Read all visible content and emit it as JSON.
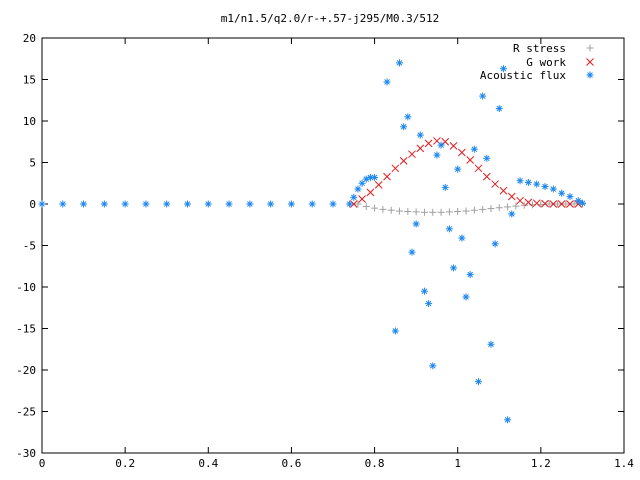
{
  "chart_data": {
    "type": "scatter",
    "title": "m1/n1.5/q2.0/r-+.57-j295/M0.3/512",
    "xlabel": "",
    "ylabel": "",
    "xlim": [
      0,
      1.4
    ],
    "ylim": [
      -30,
      20
    ],
    "x_ticks": [
      0,
      0.2,
      0.4,
      0.6,
      0.8,
      1,
      1.2,
      1.4
    ],
    "y_ticks": [
      -30,
      -25,
      -20,
      -15,
      -10,
      -5,
      0,
      5,
      10,
      15,
      20
    ],
    "x_tick_labels": [
      "0",
      "0.2",
      "0.4",
      "0.6",
      "0.8",
      "1",
      "1.2",
      "1.4"
    ],
    "y_tick_labels": [
      "-30",
      "-25",
      "-20",
      "-15",
      "-10",
      "-5",
      "0",
      "5",
      "10",
      "15",
      "20"
    ],
    "grid": false,
    "legend_position": "top-right",
    "series": [
      {
        "name": "R stress",
        "marker": "+",
        "color": "#a0a0a0",
        "x": [
          0.76,
          0.78,
          0.8,
          0.82,
          0.84,
          0.86,
          0.88,
          0.9,
          0.92,
          0.94,
          0.96,
          0.98,
          1.0,
          1.02,
          1.04,
          1.06,
          1.08,
          1.1,
          1.12,
          1.14,
          1.16,
          1.18,
          1.2,
          1.22,
          1.24,
          1.26,
          1.28,
          1.3
        ],
        "y": [
          0,
          -0.3,
          -0.5,
          -0.65,
          -0.75,
          -0.85,
          -0.9,
          -0.95,
          -1.0,
          -1.0,
          -1.0,
          -0.95,
          -0.9,
          -0.85,
          -0.75,
          -0.65,
          -0.55,
          -0.45,
          -0.35,
          -0.25,
          -0.15,
          -0.1,
          -0.05,
          0,
          0,
          0,
          0,
          0
        ]
      },
      {
        "name": "G work",
        "marker": "x",
        "color": "#e41a1c",
        "x": [
          0.75,
          0.77,
          0.79,
          0.81,
          0.83,
          0.85,
          0.87,
          0.89,
          0.91,
          0.93,
          0.95,
          0.97,
          0.99,
          1.01,
          1.03,
          1.05,
          1.07,
          1.09,
          1.11,
          1.13,
          1.15,
          1.17,
          1.19,
          1.21,
          1.23,
          1.25,
          1.27,
          1.29
        ],
        "y": [
          0,
          0.6,
          1.4,
          2.3,
          3.3,
          4.3,
          5.2,
          6.0,
          6.7,
          7.3,
          7.6,
          7.5,
          7.0,
          6.2,
          5.3,
          4.3,
          3.3,
          2.4,
          1.6,
          0.9,
          0.4,
          0.2,
          0.1,
          0.05,
          0,
          0,
          0,
          0
        ]
      },
      {
        "name": "Acoustic flux",
        "marker": "*",
        "color": "#1c86ee",
        "x": [
          0.0,
          0.05,
          0.1,
          0.15,
          0.2,
          0.25,
          0.3,
          0.35,
          0.4,
          0.45,
          0.5,
          0.55,
          0.6,
          0.65,
          0.7,
          0.74,
          0.75,
          0.76,
          0.77,
          0.78,
          0.79,
          0.8,
          1.15,
          1.17,
          1.19,
          1.21,
          1.23,
          1.25,
          1.27,
          1.29,
          1.3,
          0.83,
          0.86,
          0.87,
          0.89,
          0.91,
          0.93,
          0.95,
          0.96,
          0.98,
          1.0,
          1.02,
          1.04,
          1.06,
          1.08,
          1.1,
          1.12,
          0.85,
          0.88,
          0.9,
          0.92,
          0.94,
          0.97,
          0.99,
          1.01,
          1.03,
          1.05,
          1.07,
          1.09,
          1.11,
          1.13
        ],
        "y": [
          0,
          0,
          0,
          0,
          0,
          0,
          0,
          0,
          0,
          0,
          0,
          0,
          0,
          0,
          0,
          0,
          0.8,
          1.8,
          2.5,
          3.0,
          3.2,
          3.2,
          2.8,
          2.6,
          2.4,
          2.1,
          1.8,
          1.3,
          0.9,
          0.4,
          0.1,
          14.7,
          17.0,
          9.3,
          -5.8,
          8.3,
          -12.0,
          5.9,
          7.1,
          -3.0,
          4.2,
          -11.2,
          6.6,
          13.0,
          -16.9,
          11.5,
          -26.0,
          -15.3,
          10.5,
          -2.4,
          -10.5,
          -19.5,
          2.0,
          -7.7,
          -4.1,
          -8.5,
          -21.4,
          5.5,
          -4.8,
          16.3,
          -1.2
        ]
      }
    ]
  }
}
